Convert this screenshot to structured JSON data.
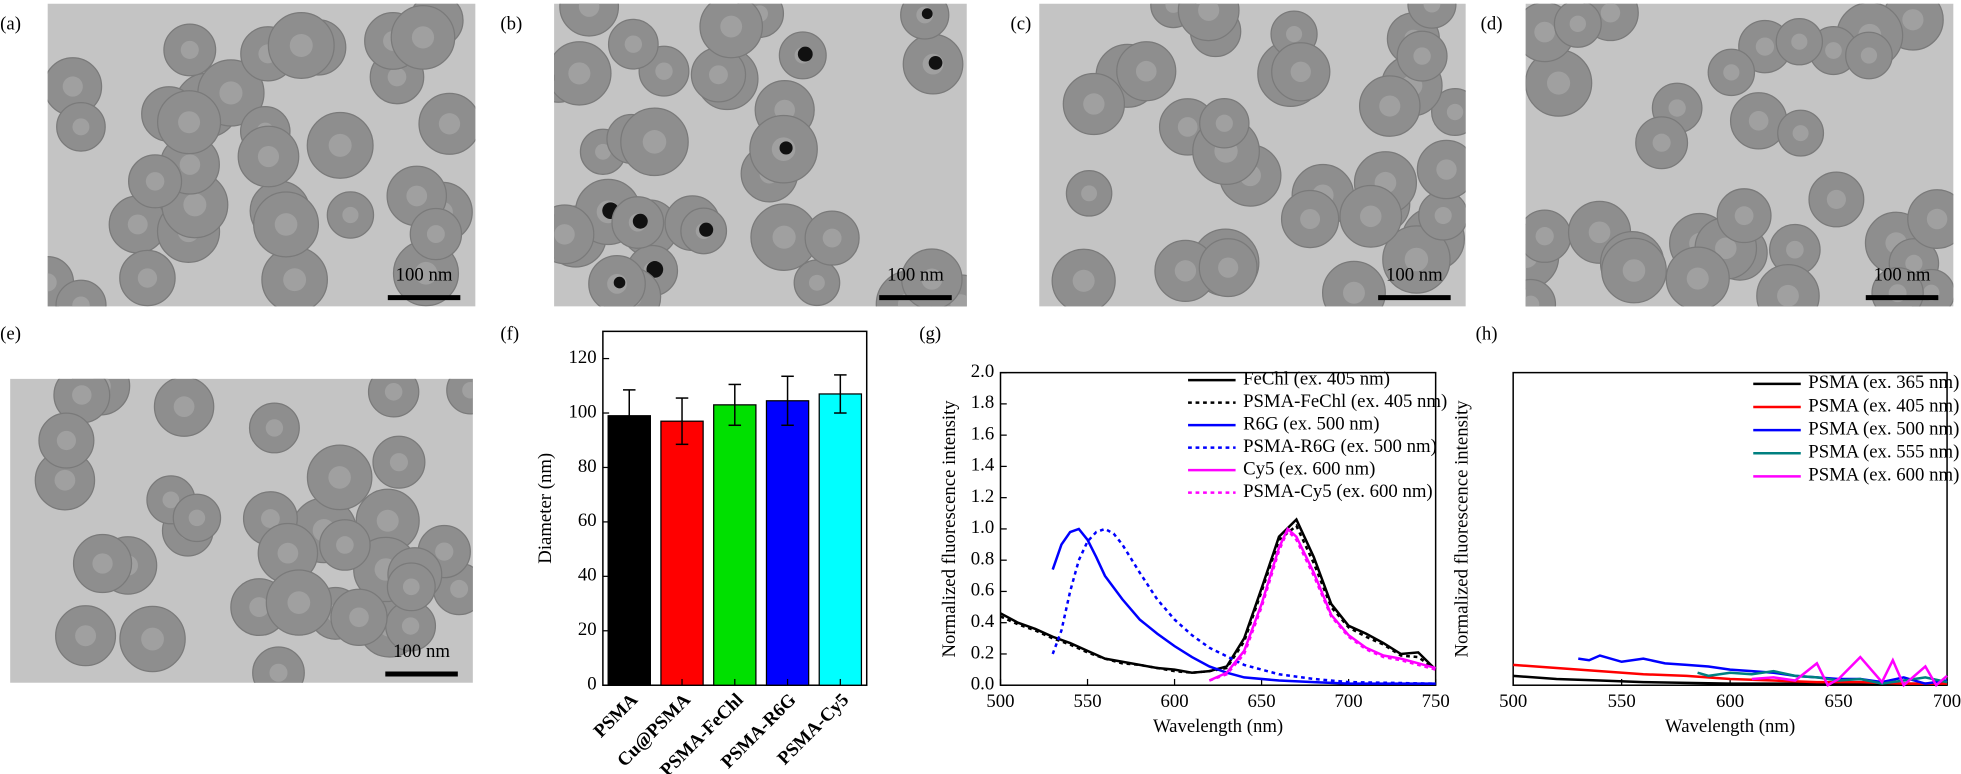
{
  "images": [
    {
      "label": "(a)",
      "scale_bar": "100 nm"
    },
    {
      "label": "(b)",
      "scale_bar": "100 nm"
    },
    {
      "label": "(c)",
      "scale_bar": "100 nm"
    },
    {
      "label": "(d)",
      "scale_bar": "100 nm"
    },
    {
      "label": "(e)",
      "scale_bar": "100 nm"
    }
  ],
  "chart_data": [
    {
      "type": "bar",
      "label": "(f)",
      "ylabel": "Diameter (nm)",
      "categories": [
        "PSMA",
        "Cu@PSMA",
        "PSMA-FeChl",
        "PSMA-R6G",
        "PSMA-Cy5"
      ],
      "values": [
        99,
        97,
        103,
        104.5,
        107
      ],
      "errors": [
        9.5,
        8.5,
        7.5,
        9,
        7
      ],
      "colors": [
        "#000000",
        "#ff0000",
        "#00e000",
        "#0000ff",
        "#00ffff"
      ],
      "ylim": [
        0,
        130
      ],
      "yticks": [
        0,
        20,
        40,
        60,
        80,
        100,
        120
      ]
    },
    {
      "type": "line",
      "label": "(g)",
      "xlabel": "Wavelength (nm)",
      "ylabel": "Normalized fluorescence intensity",
      "xlim": [
        500,
        750
      ],
      "xticks": [
        500,
        550,
        600,
        650,
        700,
        750
      ],
      "ylim": [
        0,
        2
      ],
      "yticks": [
        {
          "value": 0,
          "label": "0.0"
        },
        0.2,
        0.4,
        0.6,
        0.8,
        {
          "value": 1,
          "label": "1.0"
        },
        1.2,
        1.4,
        1.6,
        1.8,
        {
          "value": 2,
          "label": "2.0"
        }
      ],
      "series": [
        {
          "name": "FeChl (ex. 405 nm)",
          "color": "#000000",
          "style": "solid",
          "x": [
            500,
            510,
            520,
            530,
            540,
            550,
            560,
            570,
            580,
            590,
            600,
            610,
            620,
            630,
            640,
            650,
            660,
            670,
            680,
            690,
            700,
            710,
            720,
            730,
            740,
            750
          ],
          "values": [
            0.46,
            0.4,
            0.36,
            0.31,
            0.27,
            0.22,
            0.17,
            0.15,
            0.13,
            0.11,
            0.1,
            0.08,
            0.09,
            0.12,
            0.3,
            0.62,
            0.95,
            1.06,
            0.82,
            0.52,
            0.38,
            0.33,
            0.27,
            0.2,
            0.21,
            0.1
          ]
        },
        {
          "name": "PSMA-FeChl (ex. 405 nm)",
          "color": "#000000",
          "style": "dotted",
          "x": [
            500,
            510,
            520,
            530,
            540,
            550,
            560,
            570,
            580,
            590,
            600,
            610,
            620,
            630,
            640,
            650,
            660,
            670,
            680,
            690,
            700,
            710,
            720,
            730,
            740,
            750
          ],
          "values": [
            0.44,
            0.39,
            0.35,
            0.3,
            0.26,
            0.21,
            0.17,
            0.14,
            0.13,
            0.11,
            0.09,
            0.08,
            0.09,
            0.11,
            0.28,
            0.6,
            0.93,
            1.02,
            0.78,
            0.5,
            0.37,
            0.31,
            0.26,
            0.19,
            0.18,
            0.1
          ]
        },
        {
          "name": "R6G (ex. 500 nm)",
          "color": "#0000ff",
          "style": "solid",
          "x": [
            530,
            535,
            540,
            545,
            550,
            555,
            560,
            570,
            580,
            590,
            600,
            610,
            620,
            630,
            640,
            660,
            680,
            700,
            750
          ],
          "values": [
            0.74,
            0.9,
            0.98,
            1.0,
            0.93,
            0.82,
            0.7,
            0.55,
            0.42,
            0.33,
            0.25,
            0.18,
            0.12,
            0.08,
            0.05,
            0.03,
            0.02,
            0.01,
            0.01
          ]
        },
        {
          "name": "PSMA-R6G (ex. 500 nm)",
          "color": "#0000ff",
          "style": "dotted",
          "x": [
            530,
            535,
            540,
            545,
            550,
            555,
            560,
            565,
            570,
            580,
            590,
            600,
            610,
            620,
            640,
            660,
            680,
            700,
            750
          ],
          "values": [
            0.2,
            0.35,
            0.6,
            0.8,
            0.92,
            0.98,
            1.0,
            0.97,
            0.9,
            0.72,
            0.55,
            0.42,
            0.32,
            0.24,
            0.13,
            0.07,
            0.04,
            0.02,
            0.01
          ]
        },
        {
          "name": "Cy5 (ex. 600 nm)",
          "color": "#ff00ff",
          "style": "solid",
          "x": [
            620,
            630,
            640,
            650,
            660,
            665,
            670,
            680,
            690,
            700,
            710,
            720,
            730,
            740,
            750
          ],
          "values": [
            0.03,
            0.08,
            0.22,
            0.52,
            0.88,
            1.0,
            0.95,
            0.72,
            0.45,
            0.32,
            0.24,
            0.19,
            0.17,
            0.14,
            0.11
          ]
        },
        {
          "name": "PSMA-Cy5 (ex. 600 nm)",
          "color": "#ff00ff",
          "style": "dotted",
          "x": [
            620,
            630,
            640,
            650,
            660,
            665,
            670,
            680,
            690,
            700,
            710,
            720,
            730,
            740,
            750
          ],
          "values": [
            0.03,
            0.07,
            0.2,
            0.5,
            0.86,
            0.99,
            0.93,
            0.7,
            0.44,
            0.31,
            0.23,
            0.18,
            0.16,
            0.13,
            0.1
          ]
        }
      ]
    },
    {
      "type": "line",
      "label": "(h)",
      "xlabel": "Wavelength (nm)",
      "ylabel": "Normalized fluorescence intensity",
      "xlim": [
        500,
        700
      ],
      "xticks": [
        500,
        550,
        600,
        650,
        700
      ],
      "ylim": [
        0,
        2
      ],
      "series": [
        {
          "name": "PSMA (ex. 365 nm)",
          "color": "#000000",
          "style": "solid",
          "x": [
            500,
            520,
            540,
            560,
            580,
            600,
            620,
            640,
            660,
            680,
            700
          ],
          "values": [
            0.06,
            0.04,
            0.03,
            0.02,
            0.015,
            0.01,
            0.01,
            0.01,
            0.01,
            0.01,
            0.01
          ]
        },
        {
          "name": "PSMA (ex. 405 nm)",
          "color": "#ff0000",
          "style": "solid",
          "x": [
            500,
            520,
            540,
            560,
            580,
            600,
            620,
            640,
            660,
            680,
            700
          ],
          "values": [
            0.13,
            0.11,
            0.09,
            0.07,
            0.06,
            0.04,
            0.03,
            0.02,
            0.02,
            0.01,
            0.01
          ]
        },
        {
          "name": "PSMA (ex. 500 nm)",
          "color": "#0000ff",
          "style": "solid",
          "x": [
            530,
            535,
            540,
            550,
            560,
            570,
            580,
            590,
            600,
            610,
            620,
            630,
            640,
            650,
            660,
            670,
            680,
            690,
            700
          ],
          "values": [
            0.17,
            0.16,
            0.19,
            0.15,
            0.17,
            0.14,
            0.13,
            0.12,
            0.1,
            0.09,
            0.08,
            0.06,
            0.05,
            0.04,
            0.04,
            0.02,
            0.05,
            0.01,
            0.03
          ]
        },
        {
          "name": "PSMA (ex. 555 nm)",
          "color": "#008080",
          "style": "solid",
          "x": [
            585,
            590,
            600,
            610,
            620,
            630,
            640,
            650,
            660,
            670,
            680,
            690,
            700
          ],
          "values": [
            0.08,
            0.06,
            0.08,
            0.07,
            0.09,
            0.06,
            0.05,
            0.03,
            0.04,
            0.01,
            0.03,
            0.05,
            0.02
          ]
        },
        {
          "name": "PSMA (ex. 600 nm)",
          "color": "#ff00ff",
          "style": "solid",
          "x": [
            610,
            620,
            630,
            640,
            645,
            650,
            660,
            670,
            675,
            680,
            690,
            695,
            700
          ],
          "values": [
            0.04,
            0.05,
            0.03,
            0.14,
            0.0,
            0.04,
            0.18,
            0.02,
            0.16,
            0.0,
            0.12,
            0.0,
            0.06
          ]
        }
      ]
    }
  ]
}
